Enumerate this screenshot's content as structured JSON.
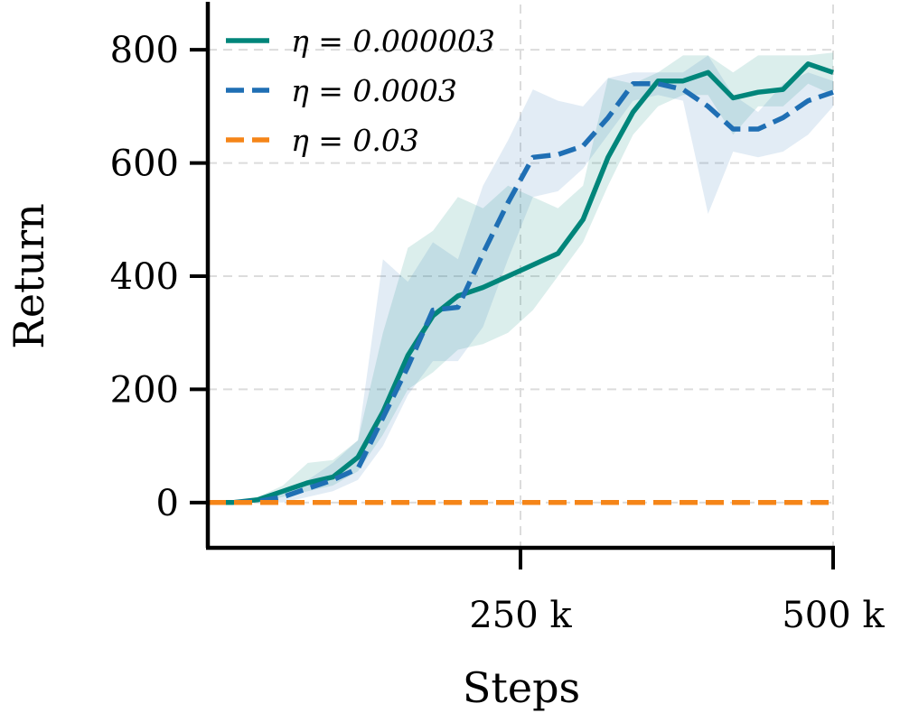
{
  "chart_data": {
    "type": "line",
    "title": "",
    "xlabel": "Steps",
    "ylabel": "Return",
    "xlim": [
      0,
      500000
    ],
    "ylim": [
      -80,
      880
    ],
    "grid": true,
    "legend_position": "top-left",
    "x_ticks": [
      {
        "value": 250000,
        "label": "250 k"
      },
      {
        "value": 500000,
        "label": "500 k"
      }
    ],
    "y_ticks": [
      {
        "value": 0,
        "label": "0"
      },
      {
        "value": 200,
        "label": "200"
      },
      {
        "value": 400,
        "label": "400"
      },
      {
        "value": 600,
        "label": "600"
      },
      {
        "value": 800,
        "label": "800"
      }
    ],
    "x": [
      0,
      20000,
      40000,
      60000,
      80000,
      100000,
      120000,
      140000,
      160000,
      180000,
      200000,
      220000,
      240000,
      260000,
      280000,
      300000,
      320000,
      340000,
      360000,
      380000,
      400000,
      420000,
      440000,
      460000,
      480000,
      500000
    ],
    "series": [
      {
        "name": "η = 0.000003",
        "legend_label": "η = 0.000003",
        "color": "#00857a",
        "style": "solid",
        "values": [
          0,
          0,
          5,
          20,
          35,
          45,
          80,
          160,
          260,
          330,
          365,
          380,
          400,
          420,
          440,
          500,
          610,
          690,
          745,
          745,
          760,
          715,
          725,
          730,
          775,
          760
        ],
        "lower": [
          0,
          0,
          0,
          10,
          20,
          30,
          55,
          120,
          200,
          230,
          270,
          280,
          300,
          340,
          400,
          460,
          560,
          650,
          700,
          720,
          720,
          650,
          700,
          700,
          740,
          720
        ],
        "upper": [
          0,
          0,
          10,
          30,
          70,
          75,
          110,
          300,
          450,
          480,
          540,
          520,
          560,
          540,
          520,
          560,
          750,
          740,
          760,
          790,
          790,
          760,
          790,
          790,
          790,
          795
        ]
      },
      {
        "name": "η = 0.0003",
        "legend_label": "η = 0.0003",
        "color": "#1f6fb4",
        "style": "dashed",
        "values": [
          0,
          0,
          2,
          10,
          25,
          40,
          60,
          150,
          240,
          340,
          345,
          440,
          530,
          610,
          615,
          630,
          680,
          740,
          740,
          730,
          700,
          660,
          660,
          680,
          710,
          725
        ],
        "lower": [
          0,
          0,
          0,
          0,
          10,
          20,
          40,
          100,
          190,
          250,
          250,
          310,
          430,
          540,
          550,
          590,
          650,
          710,
          720,
          710,
          510,
          620,
          610,
          620,
          650,
          700
        ],
        "upper": [
          0,
          0,
          8,
          20,
          40,
          70,
          110,
          430,
          390,
          460,
          430,
          560,
          640,
          730,
          710,
          700,
          750,
          760,
          760,
          760,
          790,
          720,
          690,
          740,
          760,
          745
        ]
      },
      {
        "name": "η = 0.03",
        "legend_label": "η = 0.03",
        "color": "#f58518",
        "style": "dashed",
        "values": [
          0,
          0,
          0,
          0,
          0,
          0,
          0,
          0,
          0,
          0,
          0,
          0,
          0,
          0,
          0,
          0,
          0,
          0,
          0,
          0,
          0,
          0,
          0,
          0,
          0,
          0
        ]
      }
    ]
  }
}
